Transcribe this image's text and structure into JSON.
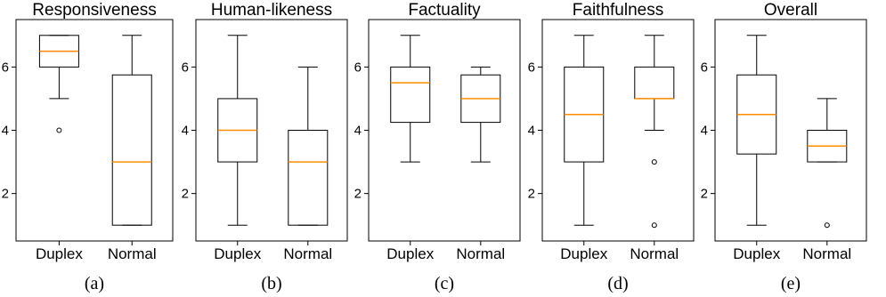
{
  "chart_data": [
    {
      "type": "box",
      "title": "Responsiveness",
      "caption": "(a)",
      "categories": [
        "Duplex",
        "Normal"
      ],
      "ylim": [
        0.5,
        7.5
      ],
      "yticks": [
        2,
        4,
        6
      ],
      "series": [
        {
          "category": "Duplex",
          "whisker_low": 5,
          "q1": 6,
          "median": 6.5,
          "q3": 7,
          "whisker_high": 7,
          "outliers": [
            4
          ]
        },
        {
          "category": "Normal",
          "whisker_low": 1,
          "q1": 1,
          "median": 3,
          "q3": 5.75,
          "whisker_high": 7,
          "outliers": []
        }
      ]
    },
    {
      "type": "box",
      "title": "Human-likeness",
      "caption": "(b)",
      "categories": [
        "Duplex",
        "Normal"
      ],
      "ylim": [
        0.5,
        7.5
      ],
      "yticks": [
        2,
        4,
        6
      ],
      "series": [
        {
          "category": "Duplex",
          "whisker_low": 1,
          "q1": 3,
          "median": 4,
          "q3": 5,
          "whisker_high": 7,
          "outliers": []
        },
        {
          "category": "Normal",
          "whisker_low": 1,
          "q1": 1,
          "median": 3,
          "q3": 4,
          "whisker_high": 6,
          "outliers": []
        }
      ]
    },
    {
      "type": "box",
      "title": "Factuality",
      "caption": "(c)",
      "categories": [
        "Duplex",
        "Normal"
      ],
      "ylim": [
        0.5,
        7.5
      ],
      "yticks": [
        2,
        4,
        6
      ],
      "series": [
        {
          "category": "Duplex",
          "whisker_low": 3,
          "q1": 4.25,
          "median": 5.5,
          "q3": 6,
          "whisker_high": 7,
          "outliers": []
        },
        {
          "category": "Normal",
          "whisker_low": 3,
          "q1": 4.25,
          "median": 5,
          "q3": 5.75,
          "whisker_high": 6,
          "outliers": []
        }
      ]
    },
    {
      "type": "box",
      "title": "Faithfulness",
      "caption": "(d)",
      "categories": [
        "Duplex",
        "Normal"
      ],
      "ylim": [
        0.5,
        7.5
      ],
      "yticks": [
        2,
        4,
        6
      ],
      "series": [
        {
          "category": "Duplex",
          "whisker_low": 1,
          "q1": 3,
          "median": 4.5,
          "q3": 6,
          "whisker_high": 7,
          "outliers": []
        },
        {
          "category": "Normal",
          "whisker_low": 4,
          "q1": 5,
          "median": 5,
          "q3": 6,
          "whisker_high": 7,
          "outliers": [
            3,
            1
          ]
        }
      ]
    },
    {
      "type": "box",
      "title": "Overall",
      "caption": "(e)",
      "categories": [
        "Duplex",
        "Normal"
      ],
      "ylim": [
        0.5,
        7.5
      ],
      "yticks": [
        2,
        4,
        6
      ],
      "series": [
        {
          "category": "Duplex",
          "whisker_low": 1,
          "q1": 3.25,
          "median": 4.5,
          "q3": 5.75,
          "whisker_high": 7,
          "outliers": []
        },
        {
          "category": "Normal",
          "whisker_low": 3,
          "q1": 3,
          "median": 3.5,
          "q3": 4,
          "whisker_high": 5,
          "outliers": [
            1
          ]
        }
      ]
    }
  ],
  "colors": {
    "median": "#ff8c00",
    "box": "#000000"
  }
}
